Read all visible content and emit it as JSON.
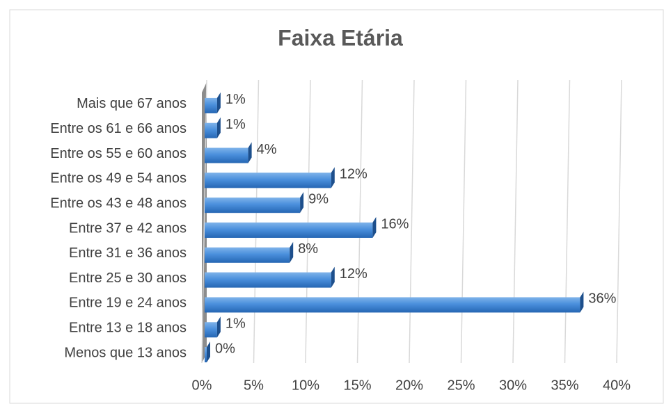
{
  "chart_data": {
    "type": "bar",
    "orientation": "horizontal",
    "title": "Faixa Etária",
    "categories": [
      "Mais que 67 anos",
      "Entre os 61 e 66 anos",
      "Entre os 55 e 60 anos",
      "Entre os 49 e 54 anos",
      "Entre os 43 e 48 anos",
      "Entre 37 e 42 anos",
      "Entre 31 e 36 anos",
      "Entre 25 e 30 anos",
      "Entre 19 e 24 anos",
      "Entre 13 e 18 anos",
      "Menos que 13 anos"
    ],
    "values": [
      1,
      1,
      4,
      12,
      9,
      16,
      8,
      12,
      36,
      1,
      0
    ],
    "value_labels": [
      "1%",
      "1%",
      "4%",
      "12%",
      "9%",
      "16%",
      "8%",
      "12%",
      "36%",
      "1%",
      "0%"
    ],
    "color": "#3a7fd0",
    "xlim": [
      0,
      40
    ],
    "xticks": [
      {
        "value": 0,
        "label": "0%"
      },
      {
        "value": 5,
        "label": "5%"
      },
      {
        "value": 10,
        "label": "10%"
      },
      {
        "value": 15,
        "label": "15%"
      },
      {
        "value": 20,
        "label": "20%"
      },
      {
        "value": 25,
        "label": "25%"
      },
      {
        "value": 30,
        "label": "30%"
      },
      {
        "value": 35,
        "label": "35%"
      },
      {
        "value": 40,
        "label": "40%"
      }
    ],
    "grid": true
  }
}
